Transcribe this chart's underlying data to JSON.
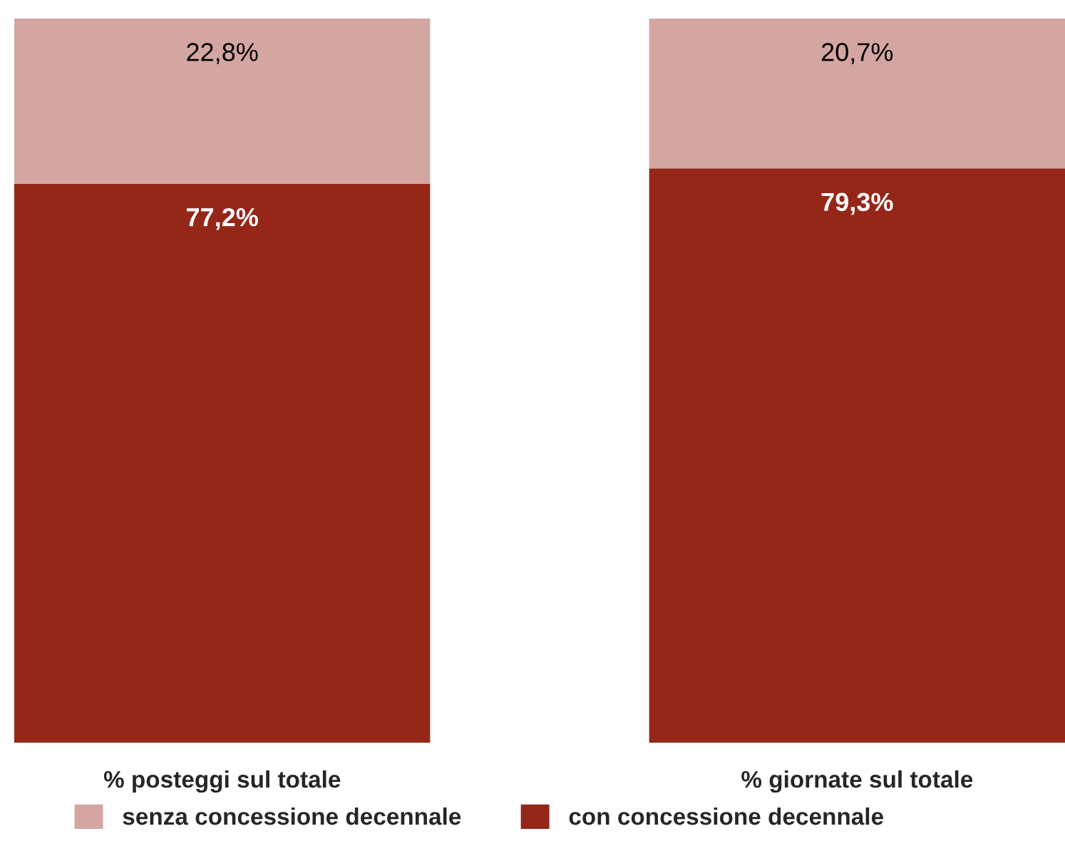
{
  "chart_data": {
    "type": "bar",
    "stacked": true,
    "categories": [
      "% posteggi sul totale",
      "% giornate sul totale"
    ],
    "series": [
      {
        "name": "con concessione decennale",
        "color": "#952718",
        "values": [
          77.2,
          79.3
        ],
        "value_labels": [
          "77,2%",
          "79,3%"
        ]
      },
      {
        "name": "senza concessione decennale",
        "color": "#d4a6a2",
        "values": [
          22.8,
          20.7
        ],
        "value_labels": [
          "22,8%",
          "20,7%"
        ]
      }
    ],
    "ylim": [
      0,
      100
    ],
    "tick_labels": "x",
    "grid": false,
    "legend": "bottom"
  }
}
